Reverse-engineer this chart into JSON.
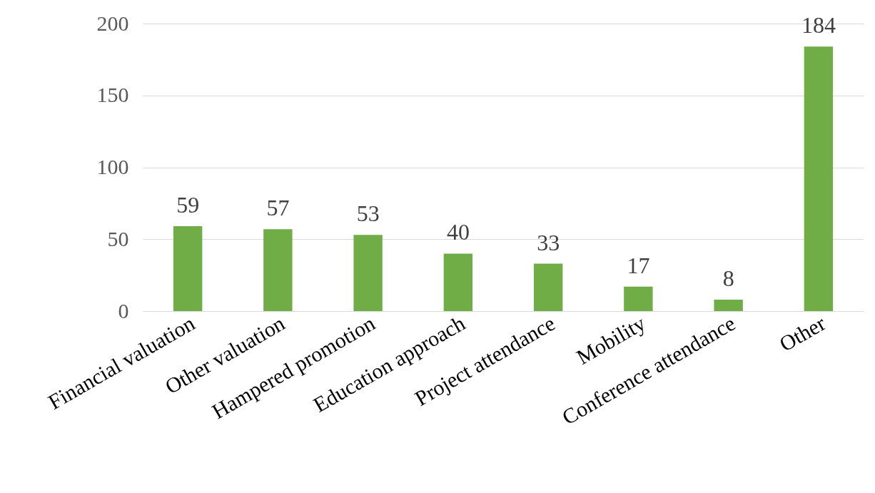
{
  "chart_data": {
    "type": "bar",
    "categories": [
      "Financial valuation",
      "Other valuation",
      "Hampered promotion",
      "Education approach",
      "Project attendance",
      "Mobility",
      "Conference attendance",
      "Other"
    ],
    "values": [
      59,
      57,
      53,
      40,
      33,
      17,
      8,
      184
    ],
    "color": "#70ad47",
    "ylim": [
      0,
      200
    ],
    "yticks": [
      0,
      50,
      100,
      150,
      200
    ],
    "grid": "y",
    "data_labels": true
  }
}
